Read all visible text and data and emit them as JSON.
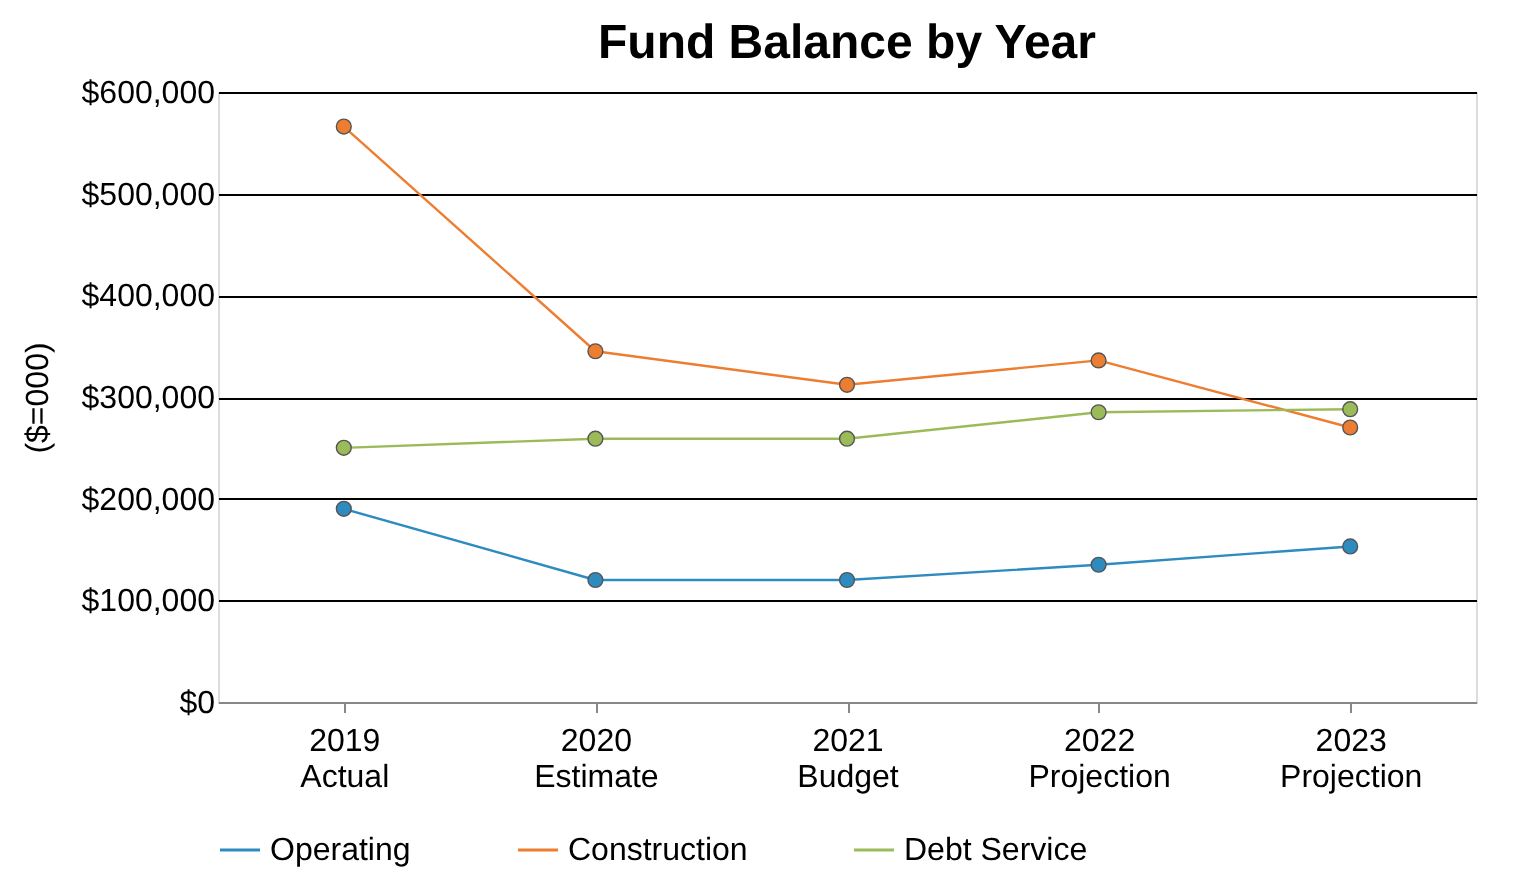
{
  "chart_data": {
    "type": "line",
    "title": "Fund Balance by Year",
    "ylabel": "($=000)",
    "categories": [
      "2019\nActual",
      "2020\nEstimate",
      "2021\nBudget",
      "2022\nProjection",
      "2023\nProjection"
    ],
    "series": [
      {
        "name": "Operating",
        "color": "#2e8bc0",
        "values": [
          190000,
          120000,
          120000,
          135000,
          153000
        ]
      },
      {
        "name": "Construction",
        "color": "#ed7d31",
        "values": [
          566000,
          345000,
          312000,
          336000,
          270000
        ]
      },
      {
        "name": "Debt Service",
        "color": "#9bbb59",
        "values": [
          250000,
          259000,
          259000,
          285000,
          288000
        ]
      }
    ],
    "ylim": [
      0,
      600000
    ],
    "yticks": [
      {
        "value": 0,
        "label": "$0"
      },
      {
        "value": 100000,
        "label": "$100,000"
      },
      {
        "value": 200000,
        "label": "$200,000"
      },
      {
        "value": 300000,
        "label": "$300,000"
      },
      {
        "value": 400000,
        "label": "$400,000"
      },
      {
        "value": 500000,
        "label": "$500,000"
      },
      {
        "value": 600000,
        "label": "$600,000"
      }
    ],
    "grid": "y",
    "legend": "bottom",
    "marker": "circle",
    "line_style": "solid"
  }
}
